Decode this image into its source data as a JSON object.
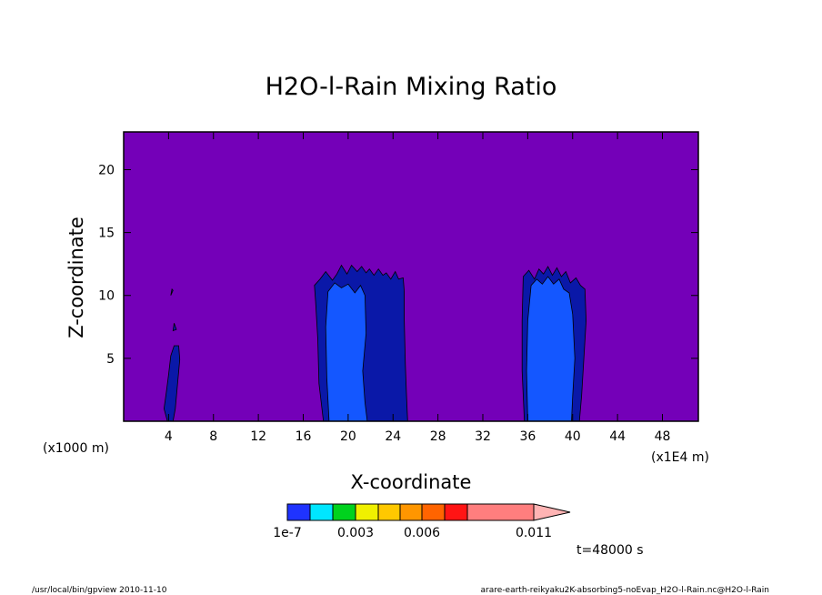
{
  "chart_data": {
    "type": "heatmap",
    "title": "H2O-l-Rain Mixing Ratio",
    "xlabel": "X-coordinate",
    "ylabel": "Z-coordinate",
    "x_unit_left": "(x1000 m)",
    "x_unit_right": "(x1E4 m)",
    "x_ticks": [
      4,
      8,
      12,
      16,
      20,
      24,
      28,
      32,
      36,
      40,
      44,
      48
    ],
    "x_tick_labels": [
      "4",
      "8",
      "12",
      "16",
      "20",
      "24",
      "28",
      "32",
      "36",
      "40",
      "44",
      "48"
    ],
    "y_ticks": [
      5,
      10,
      15,
      20
    ],
    "y_tick_labels": [
      "5",
      "10",
      "15",
      "20"
    ],
    "xlim": [
      0,
      51.2
    ],
    "ylim": [
      0,
      23
    ],
    "grid": false,
    "background_color": "#7400b8",
    "contour_levels": {
      "colors": [
        "#1f33ff",
        "#00e6ff",
        "#00d21e",
        "#f0f000",
        "#ffc800",
        "#ff9600",
        "#ff6400",
        "#ff1414",
        "#ff7e7e",
        "#ffb4b4"
      ],
      "labels": [
        "1e-7",
        "0.003",
        "0.006",
        "0.011"
      ]
    },
    "regions": [
      {
        "level": 0,
        "color": "#0a18a8",
        "polygon": [
          [
            3.6,
            1.0
          ],
          [
            3.8,
            2.3
          ],
          [
            4.0,
            3.7
          ],
          [
            4.2,
            5.2
          ],
          [
            4.5,
            6.0
          ],
          [
            4.9,
            6.0
          ],
          [
            5.0,
            4.9
          ],
          [
            4.8,
            3.0
          ],
          [
            4.6,
            1.0
          ],
          [
            4.4,
            0.0
          ],
          [
            3.9,
            0.0
          ]
        ]
      },
      {
        "level": 0,
        "color": "#0a18a8",
        "polygon": [
          [
            4.3,
            10.5
          ],
          [
            4.2,
            10.0
          ],
          [
            4.4,
            10.4
          ]
        ]
      },
      {
        "level": 0,
        "color": "#0a18a8",
        "polygon": [
          [
            4.5,
            7.8
          ],
          [
            4.4,
            7.2
          ],
          [
            4.7,
            7.3
          ]
        ]
      },
      {
        "level": 0,
        "color": "#0a18a8",
        "polygon": [
          [
            17.8,
            0.0
          ],
          [
            17.4,
            3.0
          ],
          [
            17.3,
            6.5
          ],
          [
            17.1,
            9.5
          ],
          [
            17.0,
            10.8
          ],
          [
            17.5,
            11.3
          ],
          [
            18.0,
            11.9
          ],
          [
            18.6,
            11.2
          ],
          [
            19.0,
            11.7
          ],
          [
            19.4,
            12.4
          ],
          [
            19.9,
            11.7
          ],
          [
            20.3,
            12.4
          ],
          [
            20.8,
            11.9
          ],
          [
            21.2,
            12.3
          ],
          [
            21.6,
            11.8
          ],
          [
            21.9,
            12.1
          ],
          [
            22.3,
            11.6
          ],
          [
            22.7,
            12.1
          ],
          [
            23.1,
            11.6
          ],
          [
            23.4,
            11.8
          ],
          [
            23.8,
            11.3
          ],
          [
            24.2,
            11.9
          ],
          [
            24.5,
            11.3
          ],
          [
            24.9,
            11.4
          ],
          [
            25.0,
            10.3
          ],
          [
            25.0,
            8.0
          ],
          [
            25.1,
            4.5
          ],
          [
            25.2,
            2.0
          ],
          [
            25.3,
            0.0
          ]
        ]
      },
      {
        "level": 1,
        "color": "#1457ff",
        "polygon": [
          [
            18.3,
            0.0
          ],
          [
            18.1,
            3.5
          ],
          [
            18.0,
            7.5
          ],
          [
            18.2,
            10.3
          ],
          [
            18.8,
            11.0
          ],
          [
            19.4,
            10.6
          ],
          [
            20.0,
            10.9
          ],
          [
            20.6,
            10.2
          ],
          [
            21.1,
            10.8
          ],
          [
            21.5,
            10.0
          ],
          [
            21.6,
            7.0
          ],
          [
            21.3,
            4.0
          ],
          [
            21.5,
            1.5
          ],
          [
            21.7,
            0.0
          ]
        ]
      },
      {
        "level": 0,
        "color": "#0a18a8",
        "polygon": [
          [
            35.7,
            0.0
          ],
          [
            35.5,
            4.0
          ],
          [
            35.5,
            8.0
          ],
          [
            35.6,
            11.5
          ],
          [
            36.1,
            12.0
          ],
          [
            36.6,
            11.3
          ],
          [
            37.0,
            12.1
          ],
          [
            37.4,
            11.7
          ],
          [
            37.8,
            12.3
          ],
          [
            38.2,
            11.6
          ],
          [
            38.6,
            12.2
          ],
          [
            39.0,
            11.5
          ],
          [
            39.4,
            11.9
          ],
          [
            39.8,
            11.0
          ],
          [
            40.3,
            11.4
          ],
          [
            40.7,
            10.8
          ],
          [
            41.1,
            10.5
          ],
          [
            41.2,
            8.0
          ],
          [
            41.0,
            5.0
          ],
          [
            40.8,
            2.0
          ],
          [
            40.6,
            0.0
          ]
        ]
      },
      {
        "level": 1,
        "color": "#1457ff",
        "polygon": [
          [
            36.0,
            0.0
          ],
          [
            35.9,
            4.0
          ],
          [
            36.0,
            8.0
          ],
          [
            36.3,
            10.8
          ],
          [
            36.8,
            11.3
          ],
          [
            37.3,
            10.9
          ],
          [
            37.8,
            11.5
          ],
          [
            38.3,
            10.9
          ],
          [
            38.8,
            11.3
          ],
          [
            39.2,
            10.5
          ],
          [
            39.7,
            10.2
          ],
          [
            40.0,
            8.5
          ],
          [
            40.2,
            5.0
          ],
          [
            40.0,
            2.0
          ],
          [
            39.9,
            0.0
          ]
        ]
      }
    ]
  },
  "time_label": "t=48000 s",
  "footer_left": "/usr/local/bin/gpview  2010-11-10",
  "footer_right": "arare-earth-reikyaku2K-absorbing5-noEvap_H2O-l-Rain.nc@H2O-l-Rain"
}
